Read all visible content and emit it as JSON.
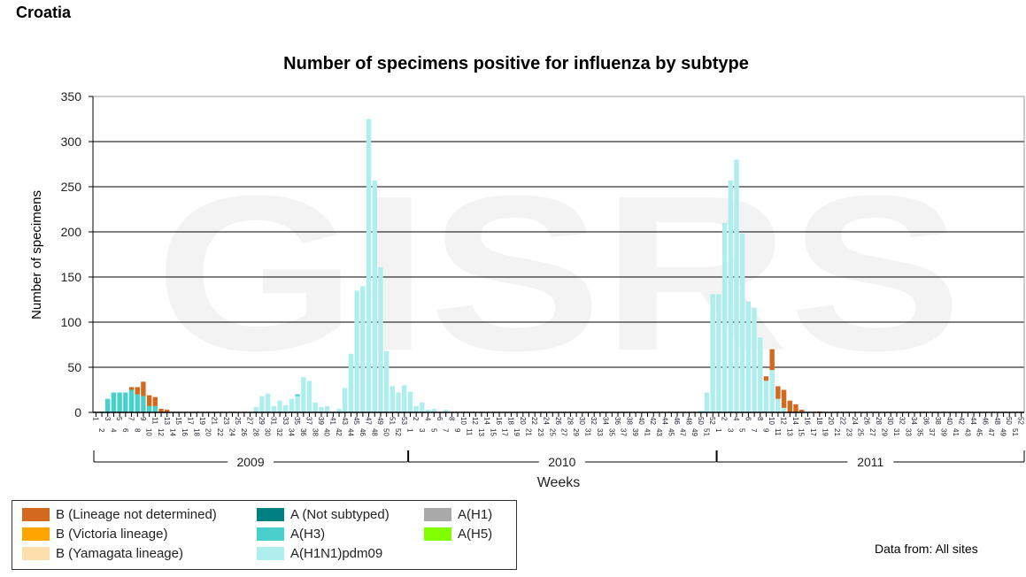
{
  "country": "Croatia",
  "source_note": "Data from: All sites",
  "chart_data": {
    "type": "bar",
    "stacked": true,
    "title": "Number of specimens positive for influenza by subtype",
    "xlabel": "Weeks",
    "ylabel": "Number of specimens",
    "ylim": [
      0,
      350
    ],
    "yticks": [
      0,
      50,
      100,
      150,
      200,
      250,
      300,
      350
    ],
    "grid": true,
    "legend_position": "bottom-left",
    "watermark": "GISRS",
    "years": [
      {
        "year": "2009",
        "weeks": 53
      },
      {
        "year": "2010",
        "weeks": 52
      },
      {
        "year": "2011",
        "weeks": 52
      }
    ],
    "series": [
      {
        "name": "A(H1N1)pdm09",
        "color": "#aeeeee",
        "values": {
          "2009": [
            0,
            0,
            0,
            0,
            0,
            0,
            0,
            0,
            0,
            0,
            0,
            0,
            0,
            0,
            0,
            0,
            0,
            0,
            0,
            0,
            0,
            0,
            0,
            0,
            0,
            0,
            0,
            6,
            18,
            21,
            7,
            13,
            8,
            15,
            18,
            39,
            35,
            11,
            6,
            7,
            0,
            4,
            27,
            65,
            135,
            140,
            325,
            257,
            161,
            68,
            29,
            22,
            30
          ],
          "2010": [
            23,
            7,
            11,
            3,
            4,
            0,
            3,
            0,
            0,
            0,
            0,
            0,
            0,
            0,
            0,
            0,
            0,
            0,
            0,
            0,
            0,
            0,
            0,
            0,
            0,
            0,
            0,
            0,
            0,
            0,
            0,
            0,
            0,
            0,
            0,
            0,
            0,
            0,
            0,
            0,
            0,
            0,
            0,
            0,
            0,
            0,
            0,
            0,
            0,
            2,
            22,
            131
          ],
          "2011": [
            131,
            210,
            257,
            280,
            198,
            123,
            116,
            83,
            35,
            47,
            15,
            5
          ]
        }
      },
      {
        "name": "A(H3)",
        "color": "#48d1cc",
        "values": {
          "2009": [
            0,
            1,
            15,
            22,
            22,
            22,
            25,
            20,
            18,
            7,
            7,
            0,
            0,
            0,
            0,
            0,
            0,
            0,
            0,
            0,
            0,
            0,
            0,
            0,
            0,
            0,
            0,
            0,
            0,
            0,
            0,
            0,
            0,
            0,
            2
          ],
          "2010": [],
          "2011": []
        }
      },
      {
        "name": "A(Not subtyped)",
        "color": "#008080",
        "values": {
          "2009": [],
          "2010": [],
          "2011": []
        }
      },
      {
        "name": "A(H1)",
        "color": "#a9a9a9",
        "values": {
          "2009": [],
          "2010": [],
          "2011": []
        }
      },
      {
        "name": "A(H5)",
        "color": "#7fff00",
        "values": {
          "2009": [],
          "2010": [],
          "2011": []
        }
      },
      {
        "name": "B (Lineage not determined)",
        "color": "#d2691e",
        "values": {
          "2009": [
            0,
            0,
            0,
            0,
            0,
            0,
            3,
            8,
            16,
            12,
            10,
            4,
            3
          ],
          "2010": [],
          "2011": [
            0,
            0,
            0,
            0,
            0,
            0,
            0,
            0,
            5,
            23,
            14,
            20,
            13,
            9,
            3,
            0,
            0,
            1
          ]
        }
      },
      {
        "name": "B (Victoria lineage)",
        "color": "#ffa500",
        "values": {
          "2009": [],
          "2010": [],
          "2011": []
        }
      },
      {
        "name": "B (Yamagata lineage)",
        "color": "#ffdead",
        "values": {
          "2009": [],
          "2010": [],
          "2011": []
        }
      }
    ],
    "legend": [
      {
        "label": "B (Lineage not determined)",
        "color": "#d2691e"
      },
      {
        "label": "B (Victoria lineage)",
        "color": "#ffa500"
      },
      {
        "label": "B (Yamagata lineage)",
        "color": "#ffdead"
      },
      {
        "label": "A (Not subtyped)",
        "color": "#008080"
      },
      {
        "label": "A(H3)",
        "color": "#48d1cc"
      },
      {
        "label": "A(H1N1)pdm09",
        "color": "#aeeeee"
      },
      {
        "label": "A(H1)",
        "color": "#a9a9a9"
      },
      {
        "label": "A(H5)",
        "color": "#7fff00"
      }
    ]
  }
}
